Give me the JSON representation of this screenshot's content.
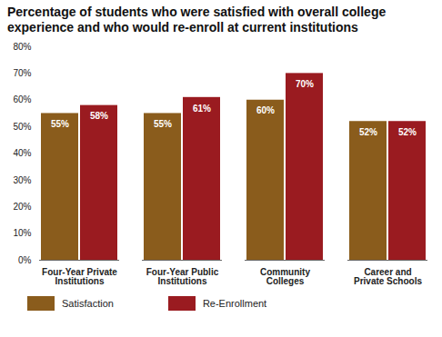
{
  "chart_data": {
    "type": "bar",
    "title": "Percentage of students who were satisfied with overall college experience and who would re-enroll at current institutions",
    "categories": [
      "Four-Year Private Institutions",
      "Four-Year Public Institutions",
      "Community Colleges",
      "Career and Private Schools"
    ],
    "series": [
      {
        "name": "Satisfaction",
        "color": "#8a5c1c",
        "values": [
          55,
          55,
          60,
          52
        ],
        "value_labels": [
          "55%",
          "55%",
          "60%",
          "52%"
        ]
      },
      {
        "name": "Re-Enrollment",
        "color": "#9a1b20",
        "values": [
          58,
          61,
          70,
          52
        ],
        "value_labels": [
          "58%",
          "61%",
          "70%",
          "52%"
        ]
      }
    ],
    "ylim": [
      0,
      80
    ],
    "yticks": [
      {
        "value": 0,
        "label": "0%"
      },
      {
        "value": 10,
        "label": "10%"
      },
      {
        "value": 20,
        "label": "20%"
      },
      {
        "value": 30,
        "label": "30%"
      },
      {
        "value": 40,
        "label": "40%"
      },
      {
        "value": 50,
        "label": "50%"
      },
      {
        "value": 60,
        "label": "60%"
      },
      {
        "value": 70,
        "label": "70%"
      },
      {
        "value": 80,
        "label": "80%"
      }
    ],
    "grid": false,
    "legend": "bottom",
    "data_labels": true
  }
}
